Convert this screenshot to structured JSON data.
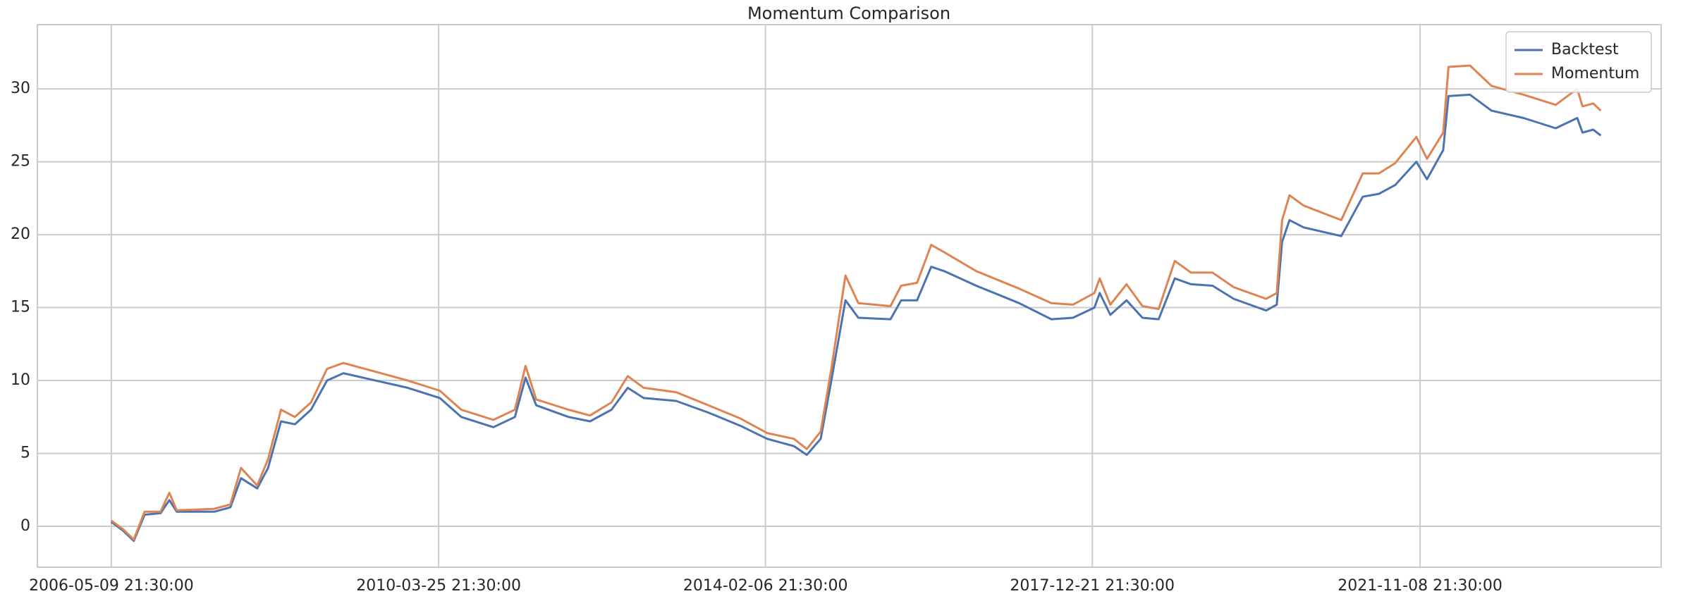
{
  "chart_data": {
    "type": "line",
    "title": "Momentum Comparison",
    "x": [
      "2006-05-09 21:30:00",
      "2006-06-29 21:30:00",
      "2006-08-14 21:30:00",
      "2006-09-30 21:30:00",
      "2006-12-08 21:30:00",
      "2007-01-15 21:30:00",
      "2007-02-16 21:30:00",
      "2007-07-28 21:30:00",
      "2007-10-06 21:30:00",
      "2007-11-21 21:30:00",
      "2008-01-30 21:30:00",
      "2008-03-17 21:30:00",
      "2008-05-12 21:30:00",
      "2008-07-11 21:30:00",
      "2008-09-19 21:30:00",
      "2008-11-27 21:30:00",
      "2009-02-06 21:30:00",
      "2009-06-25 21:30:00",
      "2009-11-11 21:30:00",
      "2010-03-30 21:30:00",
      "2010-07-01 21:30:00",
      "2010-11-17 21:30:00",
      "2011-02-18 21:30:00",
      "2011-04-05 21:30:00",
      "2011-05-21 21:30:00",
      "2011-10-08 21:30:00",
      "2012-01-09 21:30:00",
      "2012-04-11 21:30:00",
      "2012-06-20 21:30:00",
      "2012-08-28 21:30:00",
      "2013-01-15 21:30:00",
      "2013-06-04 21:30:00",
      "2013-10-20 21:30:00",
      "2014-02-13 21:30:00",
      "2014-06-09 21:30:00",
      "2014-08-04 21:30:00",
      "2014-10-03 21:30:00",
      "2014-11-18 21:30:00",
      "2015-01-18 21:30:00",
      "2015-03-15 21:30:00",
      "2015-08-01 21:30:00",
      "2015-09-16 21:30:00",
      "2015-11-24 21:30:00",
      "2016-01-24 21:30:00",
      "2016-03-20 21:30:00",
      "2016-08-06 21:30:00",
      "2017-02-08 21:30:00",
      "2017-06-27 21:30:00",
      "2017-09-28 21:30:00",
      "2017-12-30 21:30:00",
      "2018-01-22 21:30:00",
      "2018-03-09 21:30:00",
      "2018-05-18 21:30:00",
      "2018-07-26 21:30:00",
      "2018-10-04 21:30:00",
      "2018-12-13 21:30:00",
      "2019-02-21 21:30:00",
      "2019-05-25 21:30:00",
      "2019-08-25 21:30:00",
      "2020-01-12 21:30:00",
      "2020-02-27 21:30:00",
      "2020-03-21 21:30:00",
      "2020-04-22 21:30:00",
      "2020-06-22 21:30:00",
      "2020-12-02 21:30:00",
      "2021-03-05 21:30:00",
      "2021-05-14 21:30:00",
      "2021-07-23 21:30:00",
      "2021-10-23 21:30:00",
      "2021-12-08 21:30:00",
      "2022-02-16 21:30:00",
      "2022-03-11 21:30:00",
      "2022-06-12 21:30:00",
      "2022-09-13 21:30:00",
      "2023-01-30 21:30:00",
      "2023-06-18 21:30:00",
      "2023-09-19 21:30:00",
      "2023-10-12 21:30:00",
      "2023-11-27 21:30:00",
      "2023-12-30 21:30:00"
    ],
    "series": [
      {
        "name": "Backtest",
        "color": "#4c72b0",
        "values": [
          0.3,
          -0.3,
          -1.0,
          0.8,
          0.9,
          1.8,
          1.0,
          1.0,
          1.3,
          3.3,
          2.6,
          4.0,
          7.2,
          7.0,
          8.0,
          10.0,
          10.5,
          10.0,
          9.5,
          8.8,
          7.5,
          6.8,
          7.5,
          10.2,
          8.3,
          7.5,
          7.2,
          8.0,
          9.5,
          8.8,
          8.6,
          7.8,
          6.9,
          6.0,
          5.5,
          4.9,
          6.0,
          10.0,
          15.5,
          14.3,
          14.2,
          15.5,
          15.5,
          17.8,
          17.5,
          16.5,
          15.3,
          14.2,
          14.3,
          15.0,
          16.0,
          14.5,
          15.5,
          14.3,
          14.2,
          17.0,
          16.6,
          16.5,
          15.6,
          14.8,
          15.2,
          19.5,
          21.0,
          20.5,
          19.9,
          22.6,
          22.8,
          23.4,
          25.0,
          23.8,
          25.8,
          29.5,
          29.6,
          28.5,
          28.0,
          27.3,
          28.0,
          27.0,
          27.2,
          26.8
        ]
      },
      {
        "name": "Momentum",
        "color": "#dd8452",
        "values": [
          0.4,
          -0.2,
          -0.9,
          1.0,
          1.0,
          2.3,
          1.1,
          1.2,
          1.5,
          4.0,
          2.8,
          4.6,
          8.0,
          7.5,
          8.5,
          10.8,
          11.2,
          10.6,
          10.0,
          9.3,
          8.0,
          7.3,
          8.0,
          11.0,
          8.7,
          8.0,
          7.6,
          8.5,
          10.3,
          9.5,
          9.2,
          8.3,
          7.4,
          6.4,
          6.0,
          5.3,
          6.5,
          10.8,
          17.2,
          15.3,
          15.1,
          16.5,
          16.7,
          19.3,
          18.8,
          17.5,
          16.3,
          15.3,
          15.2,
          16.0,
          17.0,
          15.2,
          16.6,
          15.1,
          14.9,
          18.2,
          17.4,
          17.4,
          16.4,
          15.6,
          16.0,
          21.0,
          22.7,
          22.0,
          21.0,
          24.2,
          24.2,
          24.9,
          26.7,
          25.2,
          27.0,
          31.5,
          31.6,
          30.2,
          29.6,
          28.9,
          30.0,
          28.8,
          29.0,
          28.5
        ]
      }
    ],
    "xlim": [
      "2005-06-23 21:30:00",
      "2024-09-16 21:30:00"
    ],
    "xticks": [
      "2006-05-09 21:30:00",
      "2010-03-25 21:30:00",
      "2014-02-06 21:30:00",
      "2017-12-21 21:30:00",
      "2021-11-08 21:30:00"
    ],
    "ylim": [
      -2.8,
      34.4
    ],
    "yticks": [
      0,
      5,
      10,
      15,
      20,
      25,
      30
    ],
    "grid": true,
    "legend": "upper right"
  }
}
